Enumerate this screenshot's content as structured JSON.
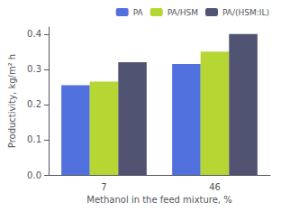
{
  "chart_data": {
    "type": "bar",
    "categories": [
      "7",
      "46"
    ],
    "series": [
      {
        "name": "PA",
        "values": [
          0.255,
          0.315
        ]
      },
      {
        "name": "PA/HSM",
        "values": [
          0.265,
          0.35
        ]
      },
      {
        "name": "PA/(HSM:IL)",
        "values": [
          0.32,
          0.4
        ]
      }
    ],
    "xlabel": "Methanol in the feed mixture, %",
    "ylabel": "Productivity, kg/m² h",
    "ylim": [
      0,
      0.42
    ],
    "yticks": [
      {
        "value": 0,
        "label": "0.0"
      },
      0.1,
      0.2,
      0.3,
      0.4
    ],
    "legend": "upper right",
    "grid": false
  }
}
